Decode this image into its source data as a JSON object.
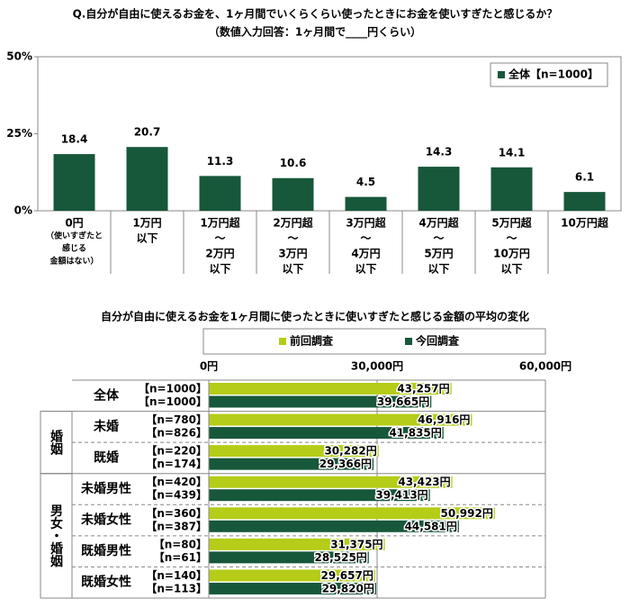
{
  "chart_data": [
    {
      "type": "bar",
      "title": "Q.自分が自由に使えるお金を、1ヶ月間でいくらくらい使ったときにお金を使いすぎたと感じるか？",
      "subtitle": "（数値入力回答：1ヶ月間で____円くらい）",
      "categories": [
        [
          "0円",
          "（使いすぎたと",
          "感じる",
          "金額はない）"
        ],
        [
          "1万円",
          "以下"
        ],
        [
          "1万円超",
          "～",
          "2万円",
          "以下"
        ],
        [
          "2万円超",
          "～",
          "3万円",
          "以下"
        ],
        [
          "3万円超",
          "～",
          "4万円",
          "以下"
        ],
        [
          "4万円超",
          "～",
          "5万円",
          "以下"
        ],
        [
          "5万円超",
          "～",
          "10万円",
          "以下"
        ],
        [
          "10万円超"
        ]
      ],
      "series": [
        {
          "name": "全体【n=1000】",
          "color": "#17573a",
          "values": [
            18.4,
            20.7,
            11.3,
            10.6,
            4.5,
            14.3,
            14.1,
            6.1
          ]
        }
      ],
      "ylim": [
        0,
        50
      ],
      "yticks": [
        {
          "value": 0,
          "label": "0%"
        },
        {
          "value": 25,
          "label": "25%"
        },
        {
          "value": 50,
          "label": "50%"
        }
      ],
      "legend": "top-right"
    },
    {
      "type": "hbar",
      "title": "自分が自由に使えるお金を1ヶ月間に使ったときに使いすぎたと感じる金額の平均の変化",
      "category_groups": [
        {
          "label": null,
          "categories": [
            "全体"
          ]
        },
        {
          "label": "婚姻",
          "categories": [
            "未婚",
            "既婚"
          ]
        },
        {
          "label": "男女・婚姻",
          "categories": [
            "未婚男性",
            "未婚女性",
            "既婚男性",
            "既婚女性"
          ]
        }
      ],
      "series": [
        {
          "name": "前回調査",
          "color": "#b5cc18",
          "n_labels": [
            "【n=1000】",
            "【n=780】",
            "【n=220】",
            "【n=420】",
            "【n=360】",
            "【n=80】",
            "【n=140】"
          ],
          "values": [
            43257,
            46916,
            30282,
            43423,
            50992,
            31375,
            29657
          ],
          "value_labels": [
            "43,257円",
            "46,916円",
            "30,282円",
            "43,423円",
            "50,992円",
            "31,375円",
            "29,657円"
          ]
        },
        {
          "name": "今回調査",
          "color": "#17573a",
          "n_labels": [
            "【n=1000】",
            "【n=826】",
            "【n=174】",
            "【n=439】",
            "【n=387】",
            "【n=61】",
            "【n=113】"
          ],
          "values": [
            39665,
            41835,
            29366,
            39413,
            44581,
            28525,
            29820
          ],
          "value_labels": [
            "39,665円",
            "41,835円",
            "29,366円",
            "39,413円",
            "44,581円",
            "28,525円",
            "29,820円"
          ]
        }
      ],
      "xlim": [
        0,
        60000
      ],
      "xticks": [
        {
          "value": 0,
          "label": "0円"
        },
        {
          "value": 30000,
          "label": "30,000円"
        },
        {
          "value": 60000,
          "label": "60,000円"
        }
      ],
      "legend": "top"
    }
  ]
}
